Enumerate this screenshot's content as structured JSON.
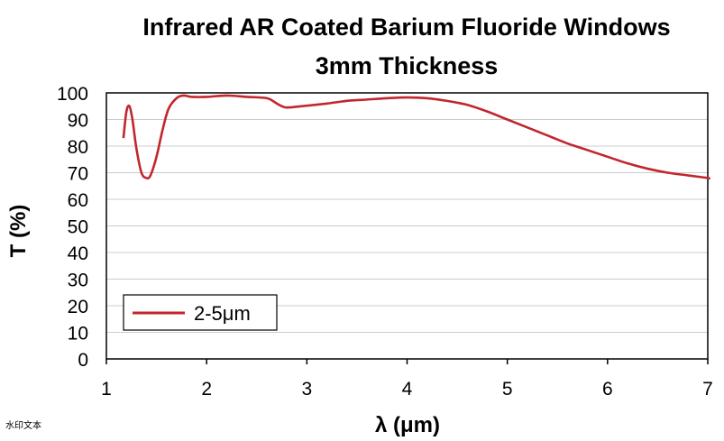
{
  "watermark": "水印文本",
  "chart_data": {
    "type": "line",
    "title": "Infrared AR Coated Barium Fluoride Windows",
    "subtitle": "3mm Thickness",
    "xlabel": "λ (μm)",
    "ylabel": "T (%)",
    "xlim": [
      1,
      7
    ],
    "ylim": [
      0,
      100
    ],
    "xticks": [
      "1",
      "2",
      "3",
      "4",
      "5",
      "6",
      "7"
    ],
    "yticks": [
      "0",
      "10",
      "20",
      "30",
      "40",
      "50",
      "60",
      "70",
      "80",
      "90",
      "100"
    ],
    "grid": true,
    "legend_position": "bottom-left",
    "colors": {
      "line": "#c1272d",
      "grid": "#cccccc",
      "frame": "#000000"
    },
    "series": [
      {
        "name": "2-5μm",
        "x": [
          1.17,
          1.2,
          1.23,
          1.26,
          1.3,
          1.35,
          1.4,
          1.44,
          1.5,
          1.56,
          1.62,
          1.7,
          1.77,
          1.85,
          2.0,
          2.2,
          2.4,
          2.6,
          2.7,
          2.75,
          2.8,
          2.9,
          3.0,
          3.2,
          3.4,
          3.6,
          3.8,
          4.0,
          4.2,
          4.4,
          4.6,
          4.8,
          5.0,
          5.2,
          5.4,
          5.6,
          5.8,
          6.0,
          6.2,
          6.4,
          6.6,
          6.8,
          7.0,
          7.05
        ],
        "y": [
          83,
          93,
          95,
          90,
          79,
          70,
          68,
          69,
          76,
          86,
          94,
          98,
          99,
          98.5,
          98.5,
          99,
          98.5,
          98,
          96,
          95,
          94.5,
          94.8,
          95.2,
          96,
          97,
          97.5,
          98,
          98.3,
          98,
          97,
          95.5,
          93,
          90,
          87,
          84,
          81,
          78.5,
          76,
          73.5,
          71.5,
          70,
          69,
          68,
          67.8
        ]
      }
    ]
  }
}
